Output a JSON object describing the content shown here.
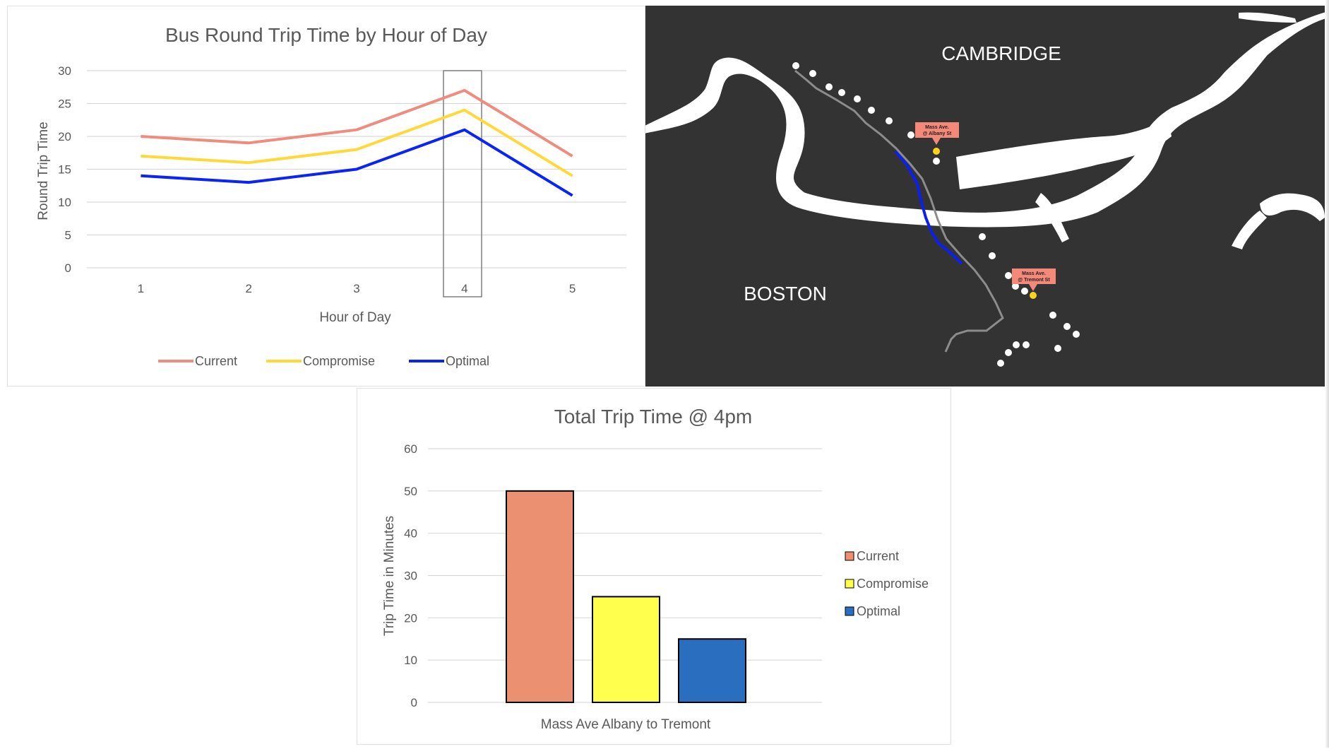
{
  "chart_data": [
    {
      "type": "line",
      "title": "Bus Round Trip Time by Hour of Day",
      "xlabel": "Hour of Day",
      "ylabel": "Round Trip Time",
      "categories": [
        "1",
        "2",
        "3",
        "4",
        "5"
      ],
      "ylim": [
        0,
        30
      ],
      "yticks": [
        "0",
        "5",
        "10",
        "15",
        "20",
        "25",
        "30"
      ],
      "grid": true,
      "legend_position": "bottom",
      "highlighted_category": "4",
      "series": [
        {
          "name": "Current",
          "color": "#EE8C7E",
          "values": [
            20,
            19,
            21,
            27,
            17
          ]
        },
        {
          "name": "Compromise",
          "color": "#FFD93A",
          "values": [
            17,
            16,
            18,
            24,
            14
          ]
        },
        {
          "name": "Optimal",
          "color": "#0A24F5",
          "values": [
            14,
            13,
            15,
            21,
            11
          ]
        }
      ]
    },
    {
      "type": "bar",
      "title": "Total Trip Time @ 4pm",
      "xlabel": "Mass Ave Albany to Tremont",
      "ylabel": "Trip Time in Minutes",
      "categories": [
        "Mass Ave Albany to Tremont"
      ],
      "ylim": [
        0,
        60
      ],
      "yticks": [
        "0",
        "10",
        "20",
        "30",
        "40",
        "50",
        "60"
      ],
      "grid": true,
      "legend_position": "right",
      "series": [
        {
          "name": "Current",
          "color": "#EB9172",
          "values": [
            50
          ]
        },
        {
          "name": "Compromise",
          "color": "#FFFF4D",
          "values": [
            25
          ]
        },
        {
          "name": "Optimal",
          "color": "#2A6EC0",
          "values": [
            15
          ]
        }
      ]
    }
  ],
  "map": {
    "labels": {
      "north": "CAMBRIDGE",
      "south": "BOSTON"
    },
    "stops": {
      "start": {
        "line1": "Mass Ave.",
        "line2": "@ Albany St"
      },
      "end": {
        "line1": "Mass Ave.",
        "line2": "@ Tremont St"
      }
    },
    "colors": {
      "land": "#333333",
      "water": "#ffffff",
      "route": "#8c8c8c",
      "segment": "#0a1ff0",
      "marker": "#f4897a",
      "highlight_stop": "#ffd21f"
    }
  }
}
